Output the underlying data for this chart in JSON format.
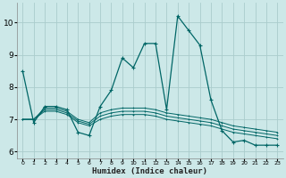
{
  "xlabel": "Humidex (Indice chaleur)",
  "background_color": "#cce8e8",
  "grid_color": "#aacccc",
  "line_color": "#006666",
  "x_values": [
    0,
    1,
    2,
    3,
    4,
    5,
    6,
    7,
    8,
    9,
    10,
    11,
    12,
    13,
    14,
    15,
    16,
    17,
    18,
    19,
    20,
    21,
    22,
    23
  ],
  "series_main": [
    8.5,
    6.9,
    7.4,
    7.4,
    7.3,
    6.6,
    6.5,
    7.4,
    7.9,
    8.9,
    8.6,
    9.35,
    9.35,
    7.3,
    10.2,
    9.75,
    9.3,
    7.6,
    6.65,
    6.3,
    6.35,
    6.2,
    6.2,
    6.2
  ],
  "series_flat": [
    [
      7.0,
      7.0,
      7.35,
      7.35,
      7.25,
      7.0,
      6.9,
      7.2,
      7.3,
      7.35,
      7.35,
      7.35,
      7.3,
      7.2,
      7.15,
      7.1,
      7.05,
      7.0,
      6.9,
      6.8,
      6.75,
      6.7,
      6.65,
      6.6
    ],
    [
      7.0,
      7.0,
      7.3,
      7.3,
      7.2,
      6.95,
      6.85,
      7.1,
      7.2,
      7.25,
      7.25,
      7.25,
      7.2,
      7.1,
      7.05,
      7.0,
      6.95,
      6.9,
      6.8,
      6.7,
      6.65,
      6.6,
      6.55,
      6.5
    ],
    [
      7.0,
      7.0,
      7.25,
      7.25,
      7.15,
      6.9,
      6.8,
      7.0,
      7.1,
      7.15,
      7.15,
      7.15,
      7.1,
      7.0,
      6.95,
      6.9,
      6.85,
      6.8,
      6.7,
      6.6,
      6.55,
      6.5,
      6.45,
      6.4
    ]
  ],
  "ylim": [
    5.8,
    10.6
  ],
  "yticks": [
    6,
    7,
    8,
    9,
    10
  ],
  "figsize": [
    3.2,
    2.0
  ],
  "dpi": 100
}
